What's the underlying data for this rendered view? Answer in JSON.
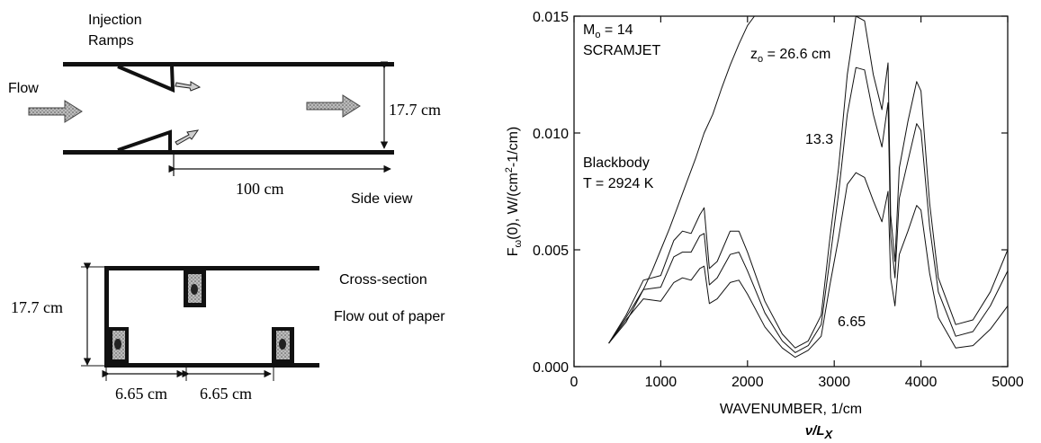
{
  "side_view": {
    "injection_label_1": "Injection",
    "injection_label_2": "Ramps",
    "flow_label": "Flow",
    "height_label": "17.7 cm",
    "length_label": "100  cm",
    "view_label": "Side view"
  },
  "cross_section": {
    "title": "Cross-section",
    "subtitle": "Flow out of paper",
    "height_label": "17.7 cm",
    "spacing_left": "6.65 cm",
    "spacing_right": "6.65 cm"
  },
  "chart_data": {
    "type": "line",
    "xlabel": "WAVENUMBER, 1/cm",
    "xlabel2": "ν/L",
    "xlabel2_sub": "X",
    "ylabel_prefix": "F",
    "ylabel_sub": "ω",
    "ylabel_suffix": "(0), W/(cm",
    "ylabel_sup": "2",
    "ylabel_end": "-1/cm)",
    "xlim": [
      0,
      5000
    ],
    "ylim": [
      0,
      0.015
    ],
    "xticks": [
      "0",
      "1000",
      "2000",
      "3000",
      "4000",
      "5000"
    ],
    "yticks": [
      "0.000",
      "0.005",
      "0.010",
      "0.015"
    ],
    "annotations": {
      "mach_prefix": "M",
      "mach_sub": "o",
      "mach_suffix": " = 14",
      "engine": "SCRAMJET",
      "z_prefix": "z",
      "z_sub": "o",
      "z_suffix": " = 26.6 cm",
      "z_mid": "13.3",
      "z_low": "6.65",
      "blackbody_1": "Blackbody",
      "blackbody_2": "T = 2924 K"
    },
    "blackbody_temperature_K": 2924,
    "series": [
      {
        "name": "26.6 cm",
        "x": [
          400,
          600,
          800,
          1000,
          1150,
          1250,
          1350,
          1450,
          1500,
          1560,
          1650,
          1800,
          1900,
          2000,
          2200,
          2400,
          2550,
          2700,
          2850,
          2950,
          3050,
          3150,
          3250,
          3350,
          3450,
          3550,
          3620,
          3650,
          3700,
          3750,
          3850,
          3950,
          4000,
          4100,
          4200,
          4400,
          4600,
          4800,
          5000
        ],
        "values": [
          0.001,
          0.0022,
          0.0037,
          0.0039,
          0.0054,
          0.0058,
          0.0057,
          0.0065,
          0.0068,
          0.0042,
          0.0045,
          0.0058,
          0.0058,
          0.0049,
          0.0028,
          0.0014,
          0.0008,
          0.0011,
          0.0022,
          0.0055,
          0.0085,
          0.0125,
          0.015,
          0.0148,
          0.0125,
          0.011,
          0.013,
          0.0065,
          0.0045,
          0.0085,
          0.0105,
          0.0122,
          0.0118,
          0.007,
          0.0038,
          0.0018,
          0.002,
          0.0032,
          0.005
        ]
      },
      {
        "name": "13.3 cm",
        "x": [
          400,
          600,
          800,
          1000,
          1150,
          1250,
          1350,
          1450,
          1500,
          1560,
          1650,
          1800,
          1900,
          2000,
          2200,
          2400,
          2550,
          2700,
          2850,
          2950,
          3050,
          3150,
          3250,
          3350,
          3450,
          3550,
          3620,
          3650,
          3700,
          3750,
          3850,
          3950,
          4000,
          4100,
          4200,
          4400,
          4600,
          4800,
          5000
        ],
        "values": [
          0.001,
          0.0021,
          0.0033,
          0.0034,
          0.0047,
          0.0049,
          0.0049,
          0.0056,
          0.0057,
          0.0035,
          0.0038,
          0.0048,
          0.0049,
          0.0041,
          0.0023,
          0.0011,
          0.0006,
          0.0009,
          0.0018,
          0.0046,
          0.0074,
          0.0108,
          0.0128,
          0.0127,
          0.0108,
          0.0094,
          0.0113,
          0.0056,
          0.0038,
          0.0072,
          0.0088,
          0.0104,
          0.0101,
          0.006,
          0.0032,
          0.0013,
          0.0015,
          0.0026,
          0.0041
        ]
      },
      {
        "name": "6.65 cm",
        "x": [
          400,
          600,
          800,
          1000,
          1150,
          1250,
          1350,
          1450,
          1500,
          1560,
          1650,
          1800,
          1900,
          2000,
          2200,
          2400,
          2550,
          2700,
          2850,
          2950,
          3050,
          3150,
          3250,
          3350,
          3450,
          3550,
          3620,
          3650,
          3700,
          3750,
          3850,
          3950,
          4000,
          4100,
          4200,
          4400,
          4600,
          4800,
          5000
        ],
        "values": [
          0.001,
          0.002,
          0.0029,
          0.0028,
          0.0036,
          0.0038,
          0.0037,
          0.0042,
          0.0043,
          0.0027,
          0.0029,
          0.0036,
          0.0037,
          0.0031,
          0.0017,
          0.0008,
          0.0004,
          0.0007,
          0.0013,
          0.0035,
          0.0055,
          0.0078,
          0.0083,
          0.0081,
          0.0071,
          0.0062,
          0.0075,
          0.0038,
          0.0026,
          0.0048,
          0.0058,
          0.0069,
          0.0067,
          0.004,
          0.0021,
          0.0008,
          0.0009,
          0.0016,
          0.0026
        ]
      },
      {
        "name": "Blackbody T = 2924 K",
        "x": [
          400,
          500,
          600,
          700,
          800,
          900,
          1000,
          1100,
          1200,
          1300,
          1400,
          1500,
          1600,
          1700,
          1800,
          1900,
          2000,
          2080
        ],
        "values": [
          0.001,
          0.00145,
          0.0019,
          0.0026,
          0.0033,
          0.0041,
          0.005,
          0.0059,
          0.0069,
          0.0079,
          0.0089,
          0.01,
          0.0108,
          0.0119,
          0.0129,
          0.0138,
          0.0146,
          0.015
        ]
      }
    ]
  }
}
